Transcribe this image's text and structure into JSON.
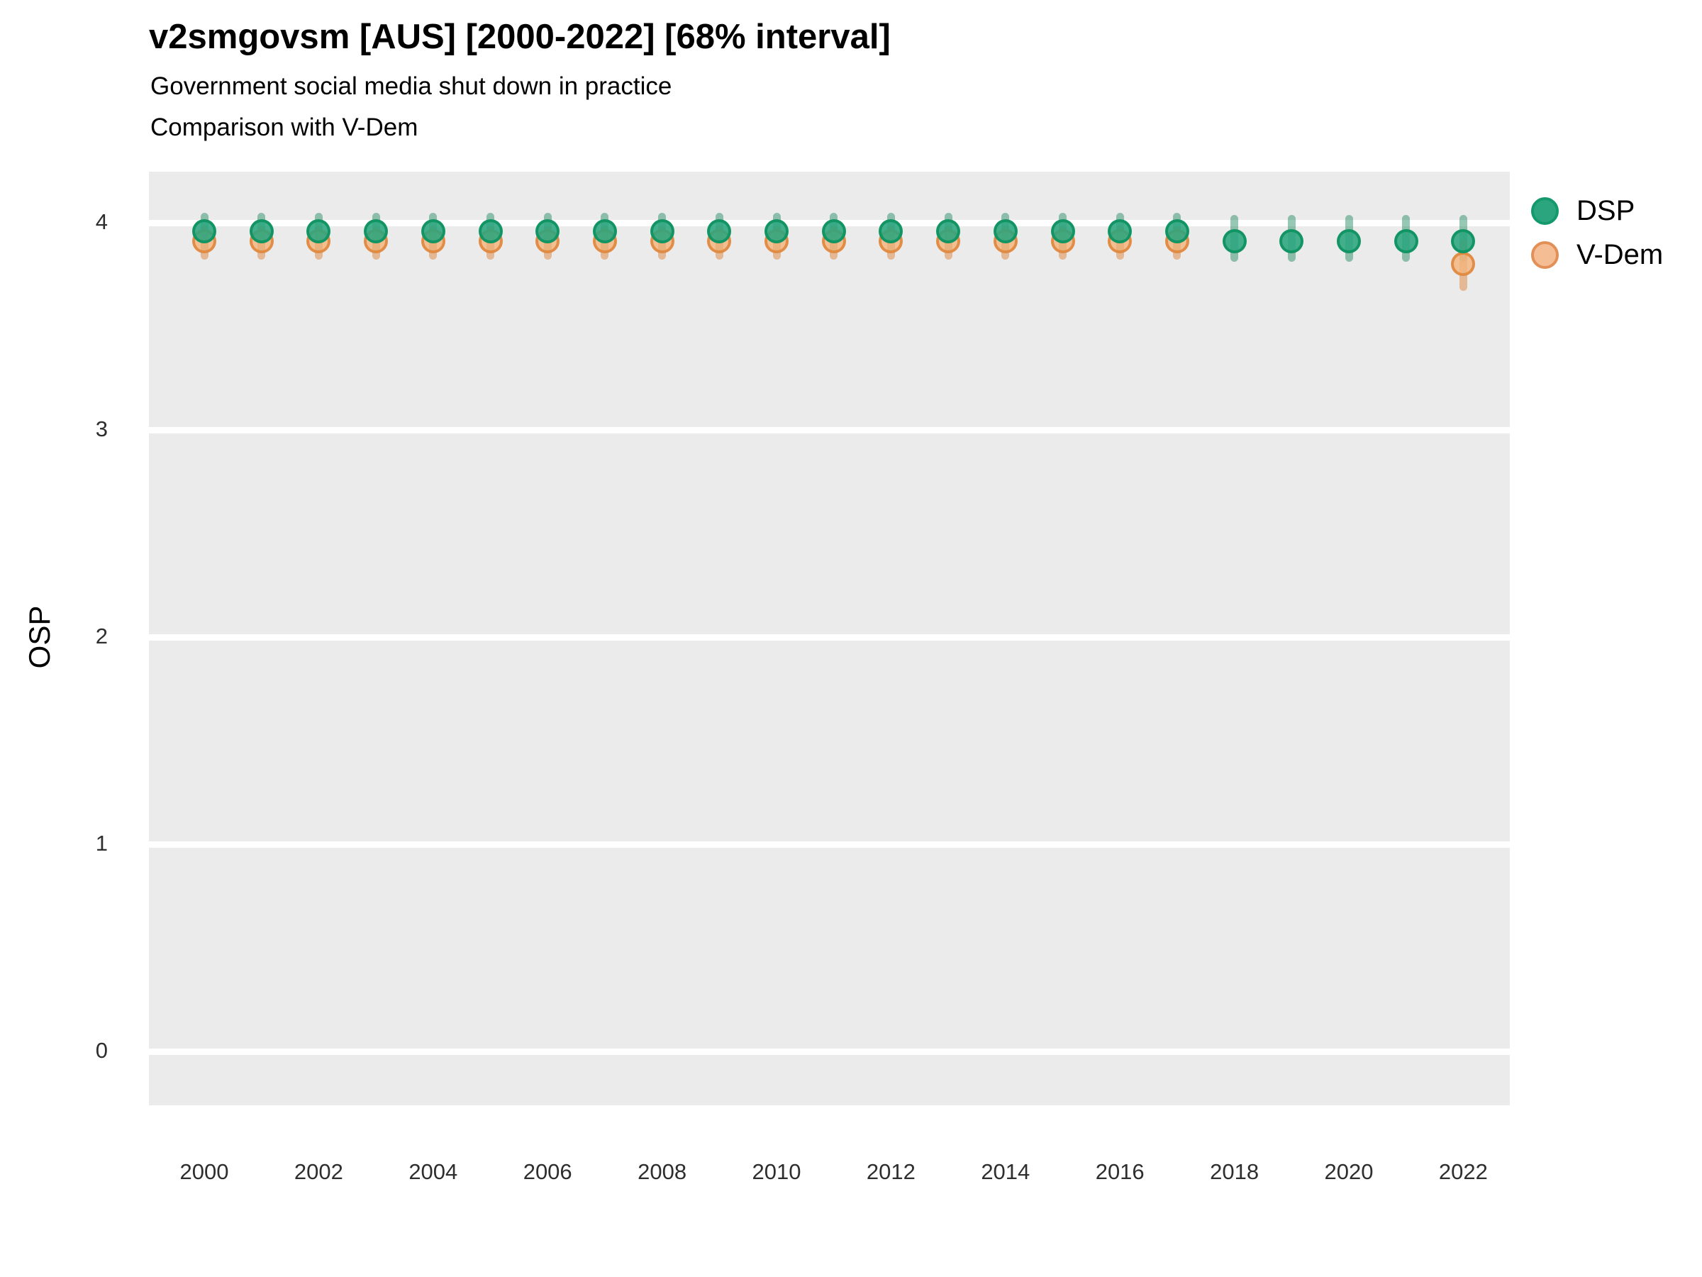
{
  "header": {
    "title": "v2smgovsm [AUS] [2000-2022] [68% interval]",
    "subtitle_line1": "Government social media shut down in practice",
    "subtitle_line2": "Comparison with V-Dem"
  },
  "y_axis_title": "OSP",
  "legend": {
    "items": [
      {
        "label": "DSP",
        "marker": "green-dot"
      },
      {
        "label": "V-Dem",
        "marker": "orange-dot"
      }
    ]
  },
  "colors": {
    "dsp": "#2BA57E",
    "dsp_border": "#13996B",
    "vdem": "#F5BD93",
    "vdem_border": "#E29057",
    "panel_bg": "#EBEBEB",
    "grid": "#FFFFFF"
  },
  "chart_data": {
    "type": "scatter",
    "title": "v2smgovsm [AUS] [2000-2022] [68% interval]",
    "subtitle": "Government social media shut down in practice / Comparison with V-Dem",
    "xlabel": "",
    "ylabel": "OSP",
    "ylim": [
      -0.26,
      4.26
    ],
    "yticks": [
      0,
      1,
      2,
      3,
      4
    ],
    "x": [
      2000,
      2001,
      2002,
      2003,
      2004,
      2005,
      2006,
      2007,
      2008,
      2009,
      2010,
      2011,
      2012,
      2013,
      2014,
      2015,
      2016,
      2017,
      2018,
      2019,
      2020,
      2021,
      2022
    ],
    "x_tick_years": [
      2000,
      2002,
      2004,
      2006,
      2008,
      2010,
      2012,
      2014,
      2016,
      2018,
      2020,
      2022
    ],
    "grid": "horizontal white lines on gray panel",
    "legend_position": "right",
    "interval": "68%",
    "series": [
      {
        "name": "DSP",
        "key": "dsp",
        "points": [
          {
            "year": 2000,
            "y": 3.96,
            "lo": 3.88,
            "hi": 4.03
          },
          {
            "year": 2001,
            "y": 3.96,
            "lo": 3.88,
            "hi": 4.03
          },
          {
            "year": 2002,
            "y": 3.96,
            "lo": 3.88,
            "hi": 4.03
          },
          {
            "year": 2003,
            "y": 3.96,
            "lo": 3.88,
            "hi": 4.03
          },
          {
            "year": 2004,
            "y": 3.96,
            "lo": 3.88,
            "hi": 4.03
          },
          {
            "year": 2005,
            "y": 3.96,
            "lo": 3.88,
            "hi": 4.03
          },
          {
            "year": 2006,
            "y": 3.96,
            "lo": 3.88,
            "hi": 4.03
          },
          {
            "year": 2007,
            "y": 3.96,
            "lo": 3.88,
            "hi": 4.03
          },
          {
            "year": 2008,
            "y": 3.96,
            "lo": 3.88,
            "hi": 4.03
          },
          {
            "year": 2009,
            "y": 3.96,
            "lo": 3.88,
            "hi": 4.03
          },
          {
            "year": 2010,
            "y": 3.96,
            "lo": 3.88,
            "hi": 4.03
          },
          {
            "year": 2011,
            "y": 3.96,
            "lo": 3.88,
            "hi": 4.03
          },
          {
            "year": 2012,
            "y": 3.96,
            "lo": 3.88,
            "hi": 4.03
          },
          {
            "year": 2013,
            "y": 3.96,
            "lo": 3.88,
            "hi": 4.03
          },
          {
            "year": 2014,
            "y": 3.96,
            "lo": 3.88,
            "hi": 4.03
          },
          {
            "year": 2015,
            "y": 3.96,
            "lo": 3.88,
            "hi": 4.03
          },
          {
            "year": 2016,
            "y": 3.96,
            "lo": 3.88,
            "hi": 4.03
          },
          {
            "year": 2017,
            "y": 3.96,
            "lo": 3.88,
            "hi": 4.03
          },
          {
            "year": 2018,
            "y": 3.91,
            "lo": 3.83,
            "hi": 4.02
          },
          {
            "year": 2019,
            "y": 3.91,
            "lo": 3.83,
            "hi": 4.02
          },
          {
            "year": 2020,
            "y": 3.91,
            "lo": 3.83,
            "hi": 4.02
          },
          {
            "year": 2021,
            "y": 3.91,
            "lo": 3.83,
            "hi": 4.02
          },
          {
            "year": 2022,
            "y": 3.91,
            "lo": 3.83,
            "hi": 4.02
          }
        ]
      },
      {
        "name": "V-Dem",
        "key": "vdem",
        "points": [
          {
            "year": 2000,
            "y": 3.91,
            "lo": 3.84,
            "hi": 3.97
          },
          {
            "year": 2001,
            "y": 3.91,
            "lo": 3.84,
            "hi": 3.97
          },
          {
            "year": 2002,
            "y": 3.91,
            "lo": 3.84,
            "hi": 3.97
          },
          {
            "year": 2003,
            "y": 3.91,
            "lo": 3.84,
            "hi": 3.97
          },
          {
            "year": 2004,
            "y": 3.91,
            "lo": 3.84,
            "hi": 3.97
          },
          {
            "year": 2005,
            "y": 3.91,
            "lo": 3.84,
            "hi": 3.97
          },
          {
            "year": 2006,
            "y": 3.91,
            "lo": 3.84,
            "hi": 3.97
          },
          {
            "year": 2007,
            "y": 3.91,
            "lo": 3.84,
            "hi": 3.97
          },
          {
            "year": 2008,
            "y": 3.91,
            "lo": 3.84,
            "hi": 3.97
          },
          {
            "year": 2009,
            "y": 3.91,
            "lo": 3.84,
            "hi": 3.97
          },
          {
            "year": 2010,
            "y": 3.91,
            "lo": 3.84,
            "hi": 3.97
          },
          {
            "year": 2011,
            "y": 3.91,
            "lo": 3.84,
            "hi": 3.97
          },
          {
            "year": 2012,
            "y": 3.91,
            "lo": 3.84,
            "hi": 3.97
          },
          {
            "year": 2013,
            "y": 3.91,
            "lo": 3.84,
            "hi": 3.97
          },
          {
            "year": 2014,
            "y": 3.91,
            "lo": 3.84,
            "hi": 3.97
          },
          {
            "year": 2015,
            "y": 3.91,
            "lo": 3.84,
            "hi": 3.97
          },
          {
            "year": 2016,
            "y": 3.91,
            "lo": 3.84,
            "hi": 3.97
          },
          {
            "year": 2017,
            "y": 3.91,
            "lo": 3.84,
            "hi": 3.97
          },
          {
            "year": 2018,
            "y": null,
            "lo": null,
            "hi": null
          },
          {
            "year": 2019,
            "y": null,
            "lo": null,
            "hi": null
          },
          {
            "year": 2020,
            "y": null,
            "lo": null,
            "hi": null
          },
          {
            "year": 2021,
            "y": null,
            "lo": null,
            "hi": null
          },
          {
            "year": 2022,
            "y": 3.8,
            "lo": 3.69,
            "hi": 3.9
          }
        ]
      }
    ]
  }
}
